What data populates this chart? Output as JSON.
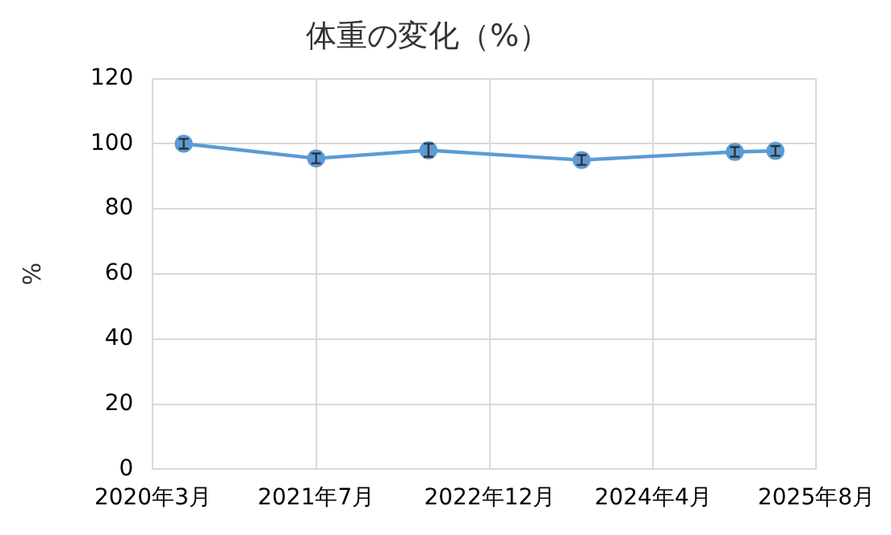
{
  "chart_data": {
    "type": "line",
    "title": "体重の変化（%）",
    "ylabel": "%",
    "x": [
      "2020-06",
      "2021-07",
      "2022-06",
      "2023-09",
      "2024-12",
      "2025-04"
    ],
    "series": [
      {
        "color": "#5b9bd5",
        "values": [
          100,
          95.5,
          98,
          95,
          97.5,
          97.8
        ],
        "errors": [
          1.5,
          1.5,
          2,
          1.5,
          1.5,
          1.5
        ]
      }
    ],
    "xlim": [
      "2020-03",
      "2025-08"
    ],
    "xticks": [
      {
        "value": "2020-03",
        "label": "2020年3月"
      },
      {
        "value": "2021-07",
        "label": "2021年7月"
      },
      {
        "value": "2022-12",
        "label": "2022年12月"
      },
      {
        "value": "2024-04",
        "label": "2024年4月"
      },
      {
        "value": "2025-08",
        "label": "2025年8月"
      }
    ],
    "ylim": [
      0,
      120
    ],
    "yticks": [
      0,
      20,
      40,
      60,
      80,
      100,
      120
    ],
    "grid": true,
    "legend": false,
    "marker": "circle",
    "line_style": "solid"
  }
}
